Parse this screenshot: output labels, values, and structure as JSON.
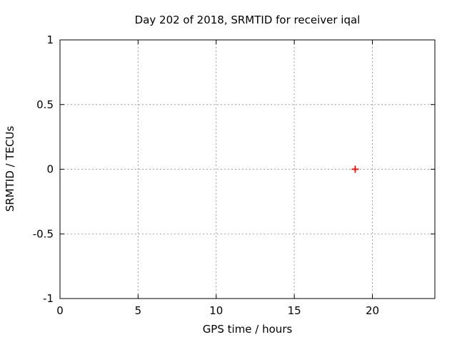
{
  "figure": {
    "background_color": "#ffffff",
    "border_color": "#000000",
    "grid_color": "#a0a0a0",
    "text_color": "#000000"
  },
  "chart_data": {
    "type": "scatter",
    "title": "Day 202 of 2018, SRMTID for receiver iqal",
    "xlabel": "GPS time / hours",
    "ylabel": "SRMTID / TECUs",
    "xlim": [
      0,
      24
    ],
    "ylim": [
      -1,
      1
    ],
    "xticks": [
      0,
      5,
      10,
      15,
      20
    ],
    "xtick_labels": [
      "0",
      "5",
      "10",
      "15",
      "20"
    ],
    "yticks": [
      -1,
      -0.5,
      0,
      0.5,
      1
    ],
    "ytick_labels": [
      "-1",
      "-0.5",
      "0",
      "0.5",
      "1"
    ],
    "grid": true,
    "grid_style": "dashed",
    "legend": "none",
    "series": [
      {
        "name": "SRMTID",
        "marker": "plus",
        "color": "#ff0000",
        "points": [
          {
            "x": 18.9,
            "y": 0.0
          }
        ]
      }
    ]
  }
}
